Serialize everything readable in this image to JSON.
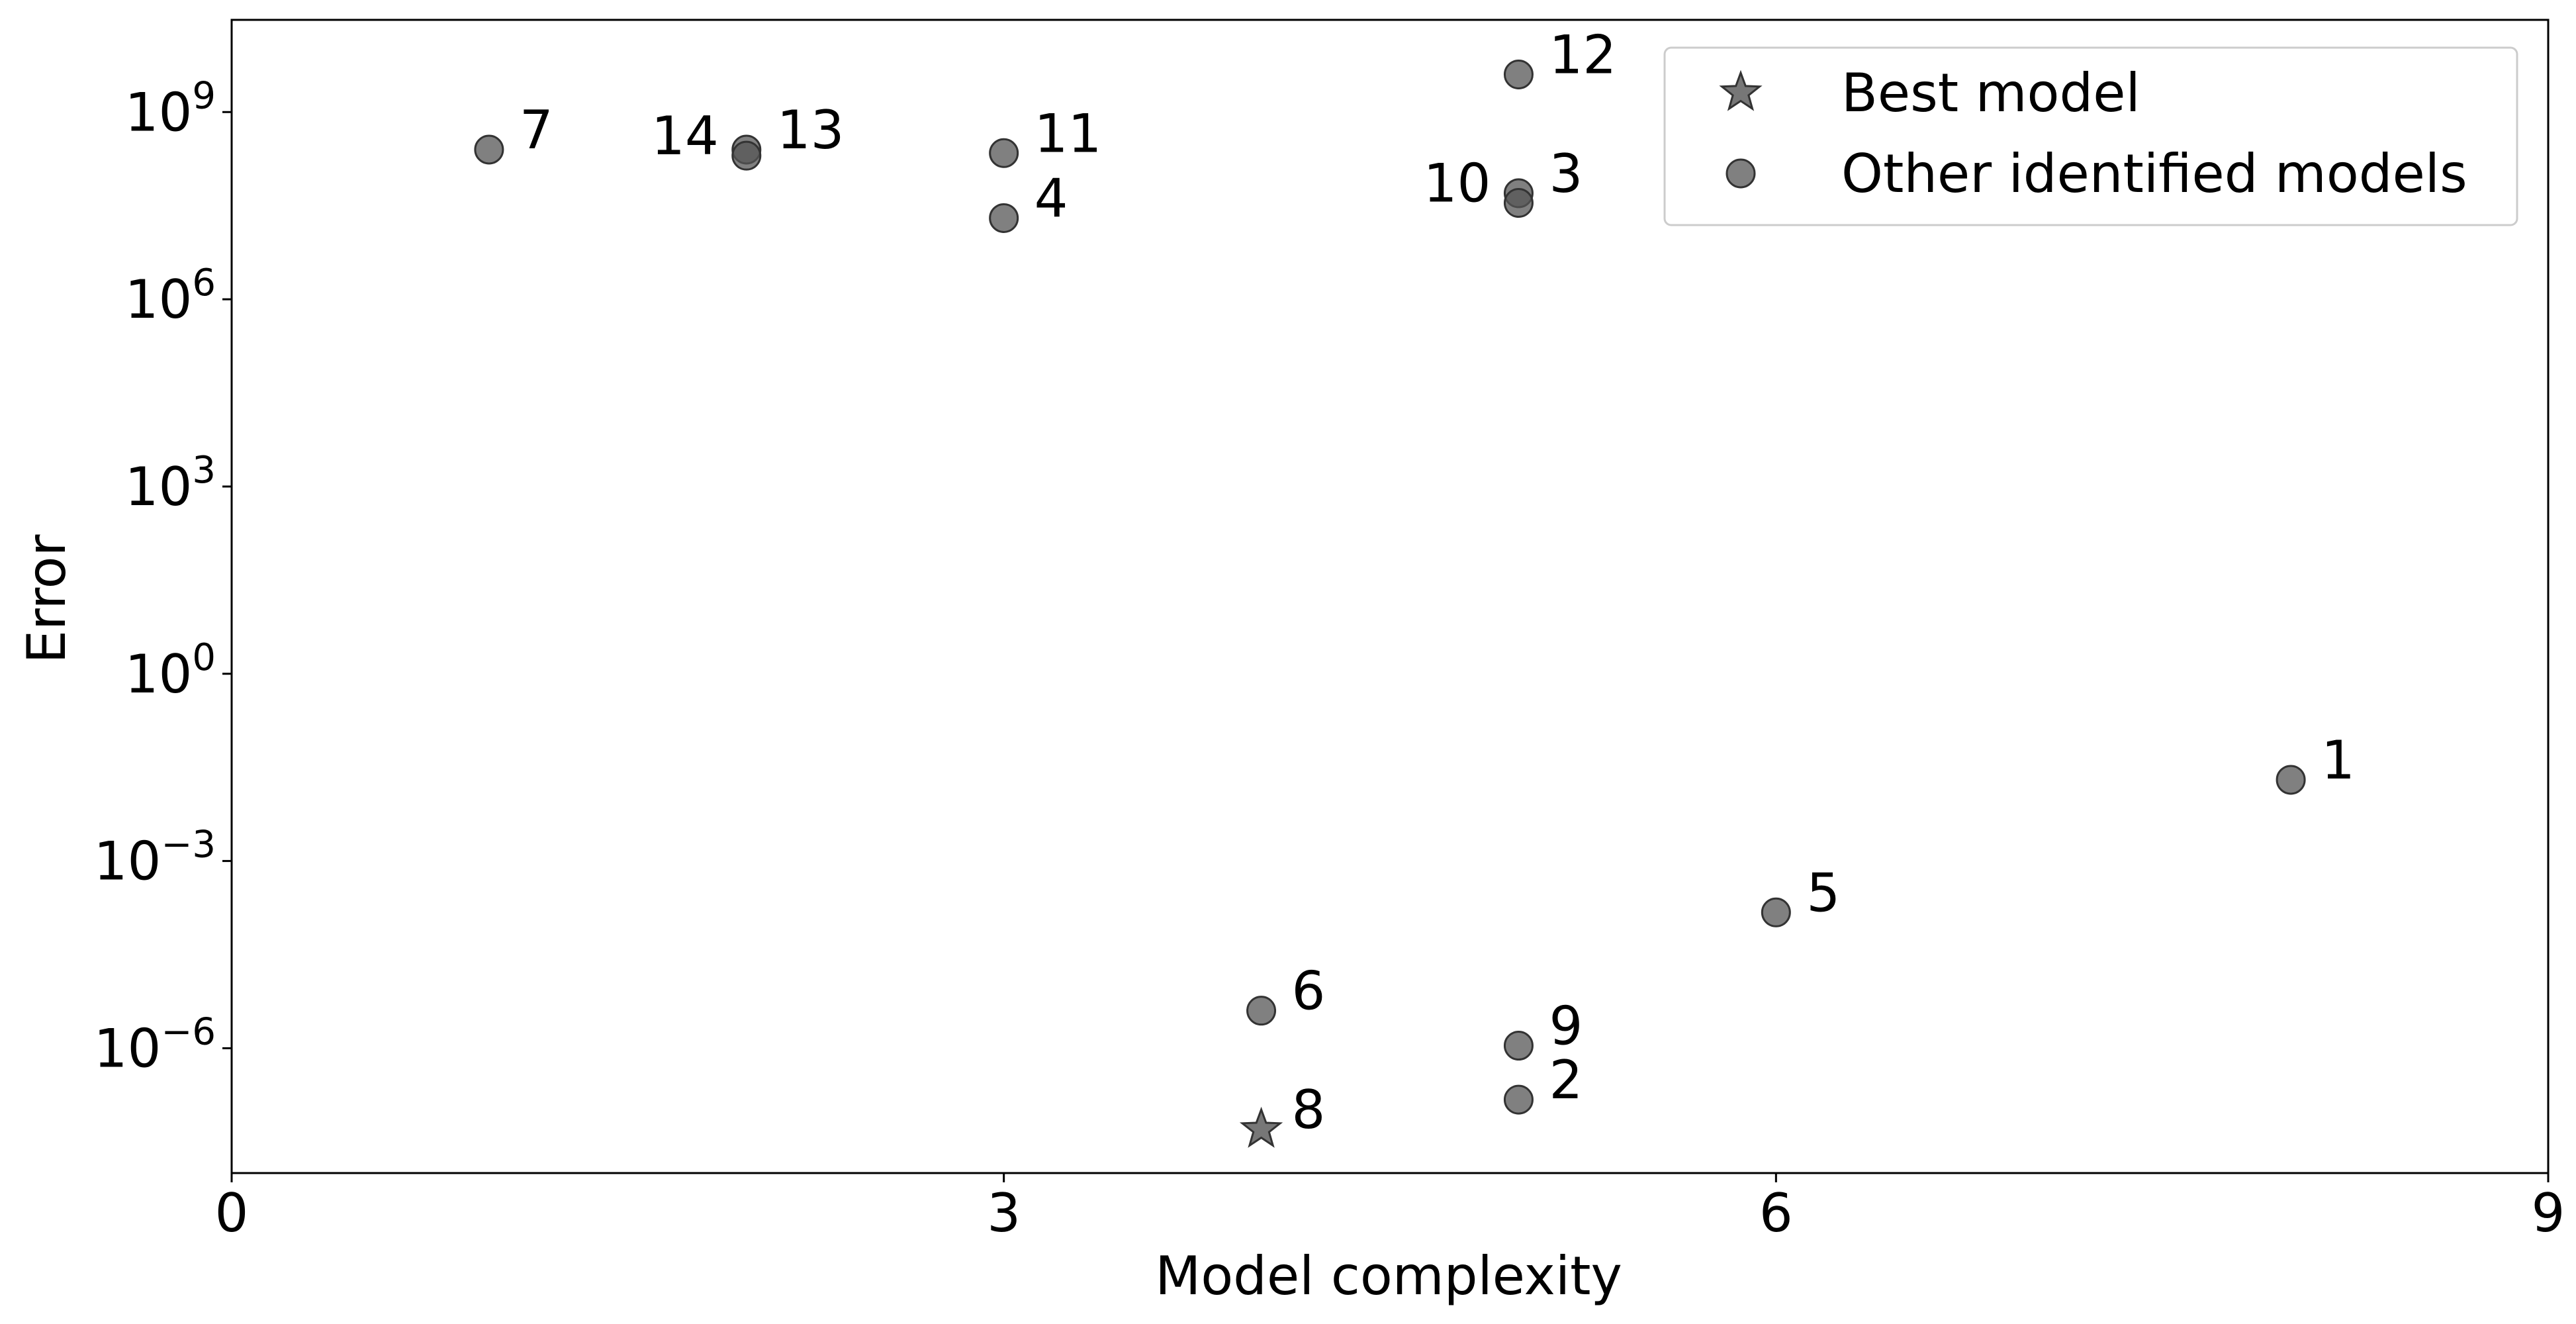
{
  "chart_data": {
    "type": "scatter",
    "title": "",
    "xlabel": "Model complexity",
    "ylabel": "Error",
    "xlim": [
      0,
      9
    ],
    "ylim": [
      1e-08,
      30000000000.0
    ],
    "yscale": "log",
    "grid": false,
    "legend_position": "top-right",
    "x_ticks": [
      {
        "value": 0,
        "label": "0"
      },
      {
        "value": 3,
        "label": "3"
      },
      {
        "value": 6,
        "label": "6"
      },
      {
        "value": 9,
        "label": "9"
      }
    ],
    "y_ticks": [
      {
        "value": 1e-06,
        "base": "10",
        "exp": "−6"
      },
      {
        "value": 0.001,
        "base": "10",
        "exp": "−3"
      },
      {
        "value": 1,
        "base": "10",
        "exp": "0"
      },
      {
        "value": 1000,
        "base": "10",
        "exp": "3"
      },
      {
        "value": 1000000,
        "base": "10",
        "exp": "6"
      },
      {
        "value": 1000000000,
        "base": "10",
        "exp": "9"
      }
    ],
    "colors": {
      "marker_fill": "#555555",
      "marker_edge": "#333333"
    },
    "series": [
      {
        "name": "Best model",
        "marker": "star",
        "points": [
          {
            "x": 4,
            "y": 5e-08,
            "label": "8",
            "label_side": "right"
          }
        ]
      },
      {
        "name": "Other identified models",
        "marker": "circle",
        "points": [
          {
            "x": 8,
            "y": 0.02,
            "label": "1",
            "label_side": "right"
          },
          {
            "x": 5,
            "y": 1.5e-07,
            "label": "2",
            "label_side": "right"
          },
          {
            "x": 5,
            "y": 50000000.0,
            "label": "3",
            "label_side": "right"
          },
          {
            "x": 3,
            "y": 20000000.0,
            "label": "4",
            "label_side": "right"
          },
          {
            "x": 6,
            "y": 0.00015,
            "label": "5",
            "label_side": "right"
          },
          {
            "x": 4,
            "y": 4e-06,
            "label": "6",
            "label_side": "right"
          },
          {
            "x": 1,
            "y": 250000000.0,
            "label": "7",
            "label_side": "right"
          },
          {
            "x": 5,
            "y": 1.1e-06,
            "label": "9",
            "label_side": "right"
          },
          {
            "x": 5,
            "y": 35000000.0,
            "label": "10",
            "label_side": "left"
          },
          {
            "x": 3,
            "y": 220000000.0,
            "label": "11",
            "label_side": "right"
          },
          {
            "x": 5,
            "y": 4000000000.0,
            "label": "12",
            "label_side": "right"
          },
          {
            "x": 2,
            "y": 250000000.0,
            "label": "13",
            "label_side": "right"
          },
          {
            "x": 2,
            "y": 200000000.0,
            "label": "14",
            "label_side": "left"
          }
        ]
      }
    ]
  }
}
